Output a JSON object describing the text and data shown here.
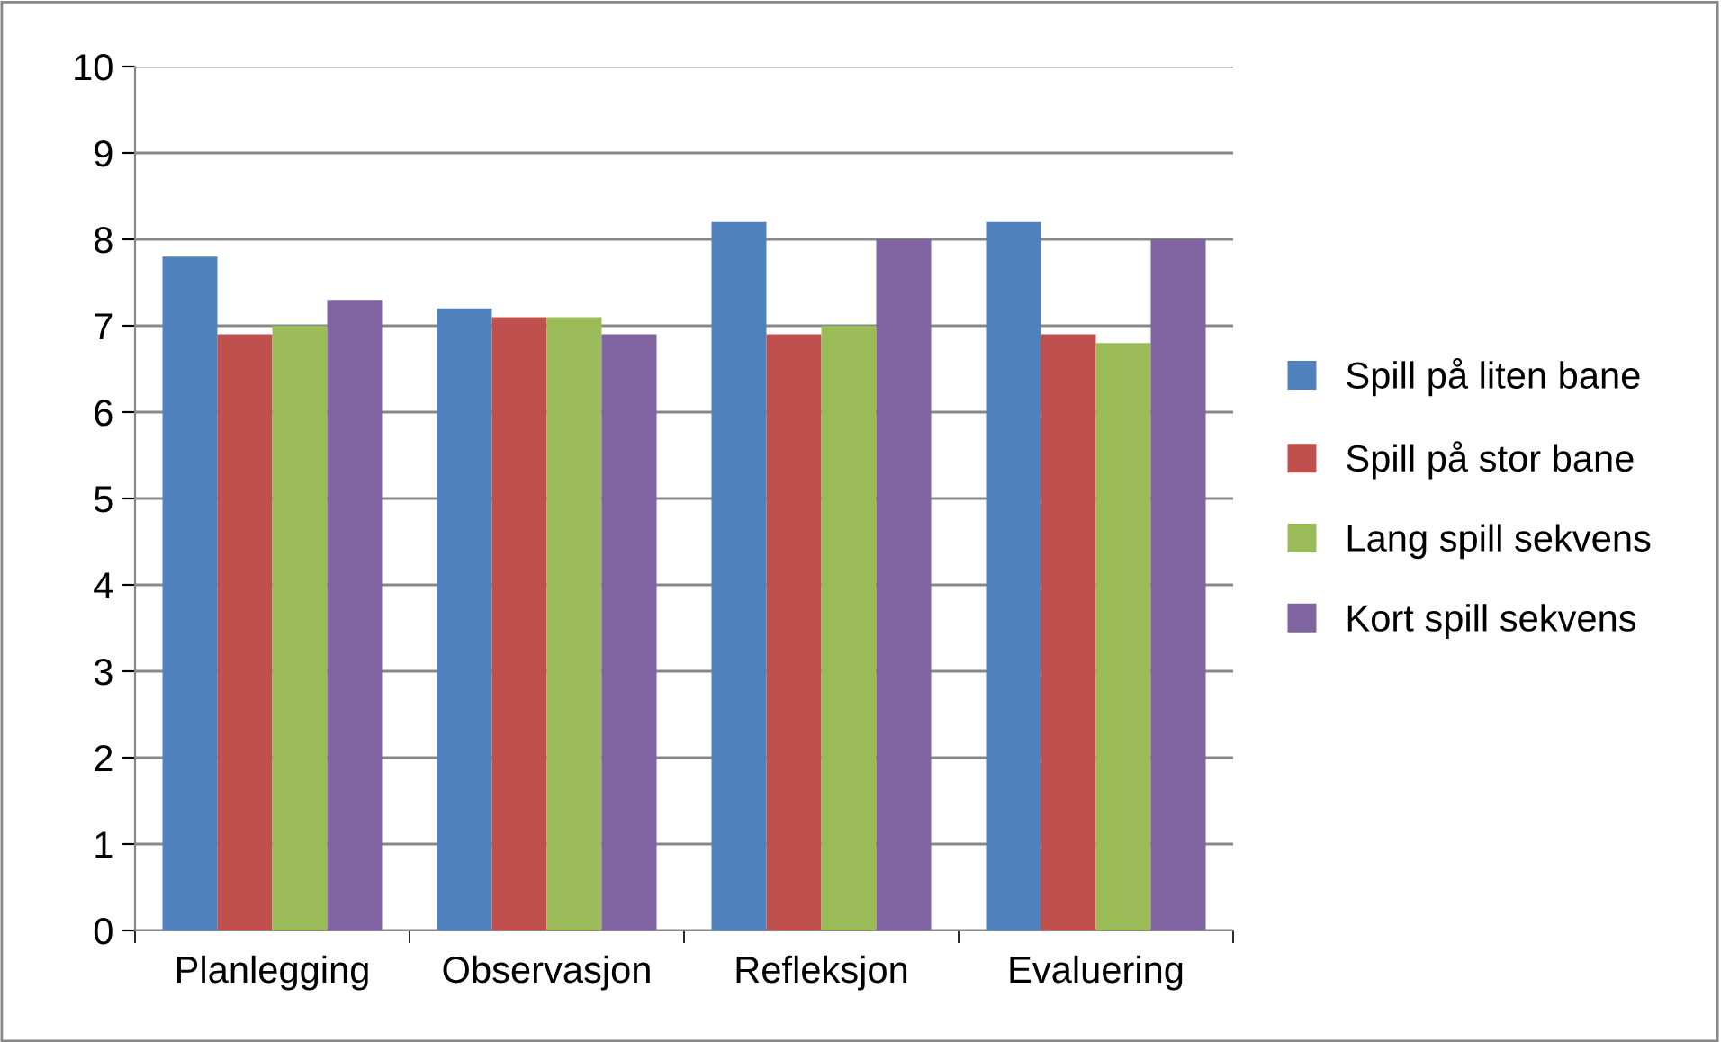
{
  "chart_data": {
    "type": "bar",
    "categories": [
      "Planlegging",
      "Observasjon",
      "Refleksjon",
      "Evaluering"
    ],
    "series": [
      {
        "name": "Spill på liten bane",
        "color": "#4f81bd",
        "values": [
          7.8,
          7.2,
          8.2,
          8.2
        ]
      },
      {
        "name": "Spill på stor bane",
        "color": "#c0504d",
        "values": [
          6.9,
          7.1,
          6.9,
          6.9
        ]
      },
      {
        "name": "Lang spill sekvens",
        "color": "#9bbb59",
        "values": [
          7.0,
          7.1,
          7.0,
          6.8
        ]
      },
      {
        "name": "Kort spill sekvens",
        "color": "#8064a2",
        "values": [
          7.3,
          6.9,
          8.0,
          8.0
        ]
      }
    ],
    "ylim": [
      0,
      10
    ],
    "yticks": [
      0,
      1,
      2,
      3,
      4,
      5,
      6,
      7,
      8,
      9,
      10
    ],
    "grid": "y",
    "legend": "right"
  }
}
